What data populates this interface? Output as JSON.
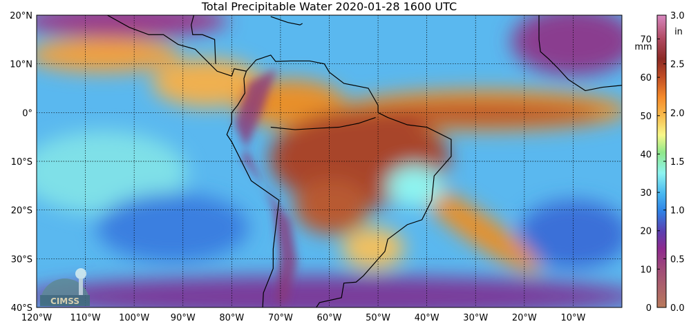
{
  "title": "Total Precipitable Water  2020-01-28 1600 UTC",
  "lat_labels": [
    "20°N",
    "10°N",
    "0°",
    "10°S",
    "20°S",
    "30°S",
    "40°S"
  ],
  "lon_labels": [
    "120°W",
    "110°W",
    "100°W",
    "90°W",
    "80°W",
    "70°W",
    "60°W",
    "50°W",
    "40°W",
    "30°W",
    "20°W",
    "10°W"
  ],
  "colorbar": {
    "mm_unit": "mm",
    "in_unit": "in",
    "mm_ticks": [
      "0",
      "10",
      "20",
      "30",
      "40",
      "50",
      "60",
      "70"
    ],
    "in_ticks": [
      "0.0",
      "0.5",
      "1.0",
      "1.5",
      "2.0",
      "2.5",
      "3.0"
    ],
    "mm_values": [
      0,
      10,
      20,
      30,
      40,
      50,
      60,
      70
    ],
    "in_values": [
      0,
      0.5,
      1.0,
      1.5,
      2.0,
      2.5,
      3.0
    ],
    "max_mm": 76.2
  },
  "logo": {
    "text": "CIMSS"
  }
}
